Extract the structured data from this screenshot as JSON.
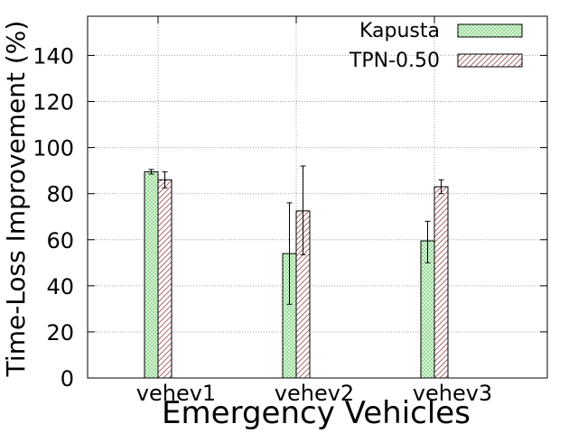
{
  "chart_data": {
    "type": "bar",
    "title": "",
    "xlabel": "Emergency Vehicles",
    "ylabel": "Time-Loss Improvement (%)",
    "ylim": [
      0,
      157
    ],
    "yticks": [
      0,
      20,
      40,
      60,
      80,
      100,
      120,
      140
    ],
    "grid": true,
    "legend_position": "top-right",
    "categories": [
      "vehev1",
      "vehev2",
      "vehev3"
    ],
    "series": [
      {
        "name": "Kapusta",
        "values": [
          89.5,
          54,
          59.5
        ],
        "error_low": [
          88.5,
          32,
          50
        ],
        "error_high": [
          90.5,
          76,
          68
        ],
        "color": "#7fd87f",
        "pattern": "crosshatch"
      },
      {
        "name": "TPN-0.50",
        "values": [
          86,
          72.5,
          83
        ],
        "error_low": [
          82.5,
          53.5,
          80
        ],
        "error_high": [
          89.5,
          92,
          86
        ],
        "color": "#b06060",
        "pattern": "diagonal"
      }
    ]
  }
}
